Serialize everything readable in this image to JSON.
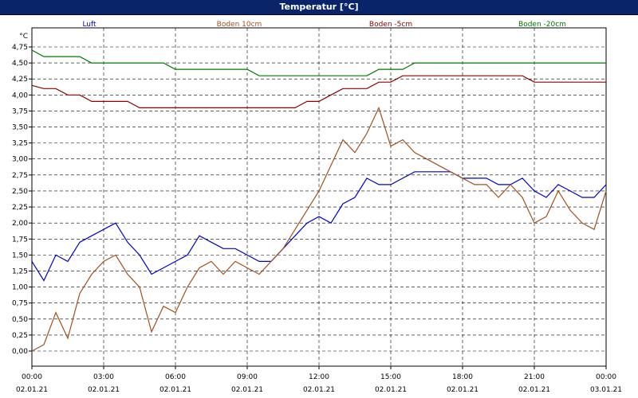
{
  "window": {
    "title": "Temperatur [°C]"
  },
  "chart_data": {
    "type": "line",
    "title": "Temperatur [°C]",
    "ylabel": "°C",
    "ylim": [
      0,
      4.75
    ],
    "grid": true,
    "legend_placement": "top",
    "yticks": [
      "0,00",
      "0,25",
      "0,50",
      "0,75",
      "1,00",
      "1,25",
      "1,50",
      "1,75",
      "2,00",
      "2,25",
      "2,50",
      "2,75",
      "3,00",
      "3,25",
      "3,50",
      "3,75",
      "4,00",
      "4,25",
      "4,50",
      "4,75"
    ],
    "xticks": [
      {
        "time": "00:00",
        "date": "02.01.21"
      },
      {
        "time": "03:00",
        "date": "02.01.21"
      },
      {
        "time": "06:00",
        "date": "02.01.21"
      },
      {
        "time": "09:00",
        "date": "02.01.21"
      },
      {
        "time": "12:00",
        "date": "02.01.21"
      },
      {
        "time": "15:00",
        "date": "02.01.21"
      },
      {
        "time": "18:00",
        "date": "02.01.21"
      },
      {
        "time": "21:00",
        "date": "02.01.21"
      },
      {
        "time": "00:00",
        "date": "03.01.21"
      }
    ],
    "x_hours": [
      0,
      0.5,
      1,
      1.5,
      2,
      2.5,
      3,
      3.5,
      4,
      4.5,
      5,
      5.5,
      6,
      6.5,
      7,
      7.5,
      8,
      8.5,
      9,
      9.5,
      10,
      10.5,
      11,
      11.5,
      12,
      12.5,
      13,
      13.5,
      14,
      14.5,
      15,
      15.5,
      16,
      16.5,
      17,
      17.5,
      18,
      18.5,
      19,
      19.5,
      20,
      20.5,
      21,
      21.5,
      22,
      22.5,
      23,
      23.5,
      24
    ],
    "series": [
      {
        "name": "Luft",
        "color": "#0000c8",
        "values": [
          1.4,
          1.1,
          1.5,
          1.4,
          1.7,
          1.8,
          1.9,
          2.0,
          1.7,
          1.5,
          1.2,
          1.3,
          1.4,
          1.5,
          1.8,
          1.7,
          1.6,
          1.6,
          1.5,
          1.4,
          1.4,
          1.6,
          1.8,
          2.0,
          2.1,
          2.0,
          2.3,
          2.4,
          2.7,
          2.6,
          2.6,
          2.7,
          2.8,
          2.8,
          2.8,
          2.8,
          2.7,
          2.7,
          2.7,
          2.6,
          2.6,
          2.7,
          2.5,
          2.4,
          2.6,
          2.5,
          2.4,
          2.4,
          2.6
        ]
      },
      {
        "name": "Boden 10cm",
        "color": "#a0501e",
        "values": [
          0.0,
          0.1,
          0.6,
          0.2,
          0.9,
          1.2,
          1.4,
          1.5,
          1.2,
          1.0,
          0.3,
          0.7,
          0.6,
          1.0,
          1.3,
          1.4,
          1.2,
          1.4,
          1.3,
          1.2,
          1.4,
          1.6,
          1.9,
          2.2,
          2.5,
          2.9,
          3.3,
          3.1,
          3.4,
          3.8,
          3.2,
          3.3,
          3.1,
          3.0,
          2.9,
          2.8,
          2.7,
          2.6,
          2.6,
          2.4,
          2.6,
          2.4,
          2.0,
          2.1,
          2.5,
          2.2,
          2.0,
          1.9,
          2.5
        ]
      },
      {
        "name": "Boden -5cm",
        "color": "#8c0000",
        "values": [
          4.15,
          4.1,
          4.1,
          4.0,
          4.0,
          3.9,
          3.9,
          3.9,
          3.9,
          3.8,
          3.8,
          3.8,
          3.8,
          3.8,
          3.8,
          3.8,
          3.8,
          3.8,
          3.8,
          3.8,
          3.8,
          3.8,
          3.8,
          3.9,
          3.9,
          4.0,
          4.1,
          4.1,
          4.1,
          4.2,
          4.2,
          4.3,
          4.3,
          4.3,
          4.3,
          4.3,
          4.3,
          4.3,
          4.3,
          4.3,
          4.3,
          4.3,
          4.2,
          4.2,
          4.2,
          4.2,
          4.2,
          4.2,
          4.2
        ]
      },
      {
        "name": "Boden -20cm",
        "color": "#007800",
        "values": [
          4.7,
          4.6,
          4.6,
          4.6,
          4.6,
          4.5,
          4.5,
          4.5,
          4.5,
          4.5,
          4.5,
          4.5,
          4.4,
          4.4,
          4.4,
          4.4,
          4.4,
          4.4,
          4.4,
          4.3,
          4.3,
          4.3,
          4.3,
          4.3,
          4.3,
          4.3,
          4.3,
          4.3,
          4.3,
          4.4,
          4.4,
          4.4,
          4.5,
          4.5,
          4.5,
          4.5,
          4.5,
          4.5,
          4.5,
          4.5,
          4.5,
          4.5,
          4.5,
          4.5,
          4.5,
          4.5,
          4.5,
          4.5,
          4.5
        ]
      }
    ]
  }
}
